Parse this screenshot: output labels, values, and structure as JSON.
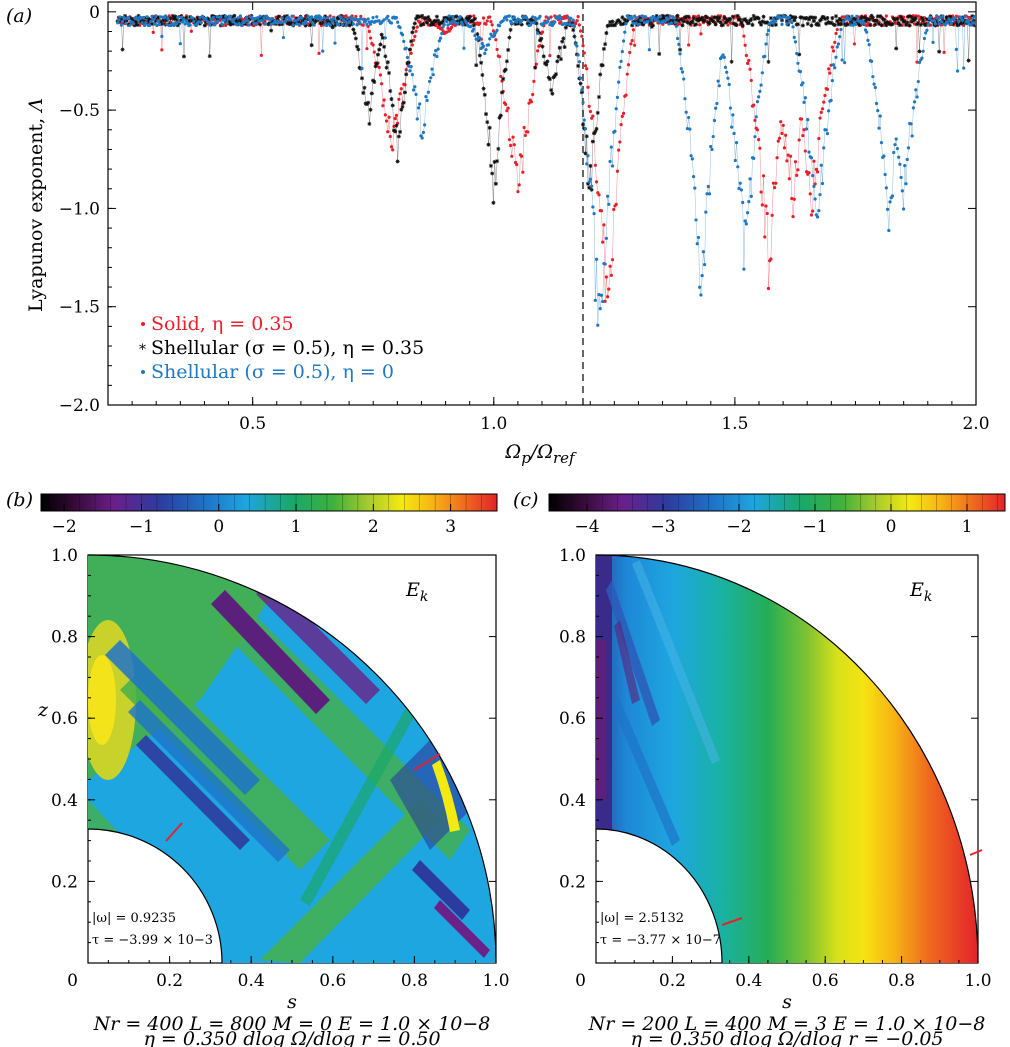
{
  "panel_labels": {
    "a": "(a)",
    "b": "(b)",
    "c": "(c)"
  },
  "chart_data": [
    {
      "type": "scatter",
      "panel": "(a)",
      "xlabel": "Ωp/Ωref",
      "ylabel": "Lyapunov exponent, Λ",
      "xlim": [
        0.2,
        2.0
      ],
      "ylim": [
        -2.0,
        0.05
      ],
      "x_ticks": [
        0.5,
        1.0,
        1.5,
        2.0
      ],
      "x_tick_labels": [
        "0.5",
        "1.0",
        "1.5",
        "2.0"
      ],
      "y_ticks": [
        0,
        -0.5,
        -1.0,
        -1.5,
        -2.0
      ],
      "y_tick_labels": [
        "0",
        "−0.5",
        "−1.0",
        "−1.5",
        "−2.0"
      ],
      "legend_position": "bottom-left",
      "vline_x": 1.185,
      "series": [
        {
          "name": "Solid, η = 0.35",
          "color": "#e8202a",
          "marker": "dot",
          "dips": [
            [
              0.79,
              -0.82
            ],
            [
              1.05,
              -1.07
            ],
            [
              1.235,
              -1.68
            ],
            [
              1.57,
              -1.42
            ],
            [
              1.62,
              -1.08
            ],
            [
              1.66,
              -1.1
            ],
            [
              0.9,
              -0.12
            ]
          ]
        },
        {
          "name": "Shellular  (σ = 0.5), η = 0.35",
          "color": "#111111",
          "marker": "star",
          "dips": [
            [
              0.74,
              -0.62
            ],
            [
              0.8,
              -0.78
            ],
            [
              1.0,
              -1.02
            ],
            [
              1.12,
              -0.45
            ],
            [
              1.2,
              -1.05
            ]
          ]
        },
        {
          "name": "Shellular  (σ = 0.5), η = 0",
          "color": "#1f78c1",
          "marker": "dot",
          "dips": [
            [
              0.85,
              -0.68
            ],
            [
              0.98,
              -0.22
            ],
            [
              1.22,
              -1.87
            ],
            [
              1.43,
              -1.55
            ],
            [
              1.52,
              -1.38
            ],
            [
              1.67,
              -1.2
            ],
            [
              1.82,
              -1.15
            ],
            [
              1.85,
              -1.05
            ],
            [
              1.5,
              -0.55
            ]
          ]
        }
      ]
    },
    {
      "type": "heatmap",
      "panel": "(b)",
      "colorbar_ticks": [
        "−2",
        "−1",
        "0",
        "1",
        "2",
        "3"
      ],
      "colorbar_range": [
        -2.3,
        3.6
      ],
      "xlabel": "s",
      "ylabel": "z",
      "x_tick_labels": [
        "0.2",
        "0.4",
        "0.6",
        "0.8",
        "1.0"
      ],
      "y_tick_labels": [
        "0.2",
        "0.4",
        "0.6",
        "0.8",
        "1.0"
      ],
      "origin_label": "0",
      "field_label": "Ek",
      "omega_text": "|ω| = 0.9235",
      "tau_text": "τ = −3.99 × 10−3",
      "params_line1": "Nr = 400 L = 800 M = 0 E = 1.0 × 10−8",
      "params_line2": "η = 0.350 dlog Ω/dlog r = 0.50"
    },
    {
      "type": "heatmap",
      "panel": "(c)",
      "colorbar_ticks": [
        "−4",
        "−3",
        "−2",
        "−1",
        "0",
        "1"
      ],
      "colorbar_range": [
        -4.5,
        1.5
      ],
      "xlabel": "s",
      "ylabel": "",
      "x_tick_labels": [
        "0.2",
        "0.4",
        "0.6",
        "0.8",
        "1.0"
      ],
      "y_tick_labels": [
        "0.2",
        "0.4",
        "0.6",
        "0.8",
        "1.0"
      ],
      "origin_label": "0",
      "field_label": "Ek",
      "omega_text": "|ω| = 2.5132",
      "tau_text": "τ = −3.77 × 10−7",
      "params_line1": "Nr = 200 L = 400 M = 3 E = 1.0 × 10−8",
      "params_line2": "η = 0.350 dlog Ω/dlog r = −0.05"
    }
  ]
}
